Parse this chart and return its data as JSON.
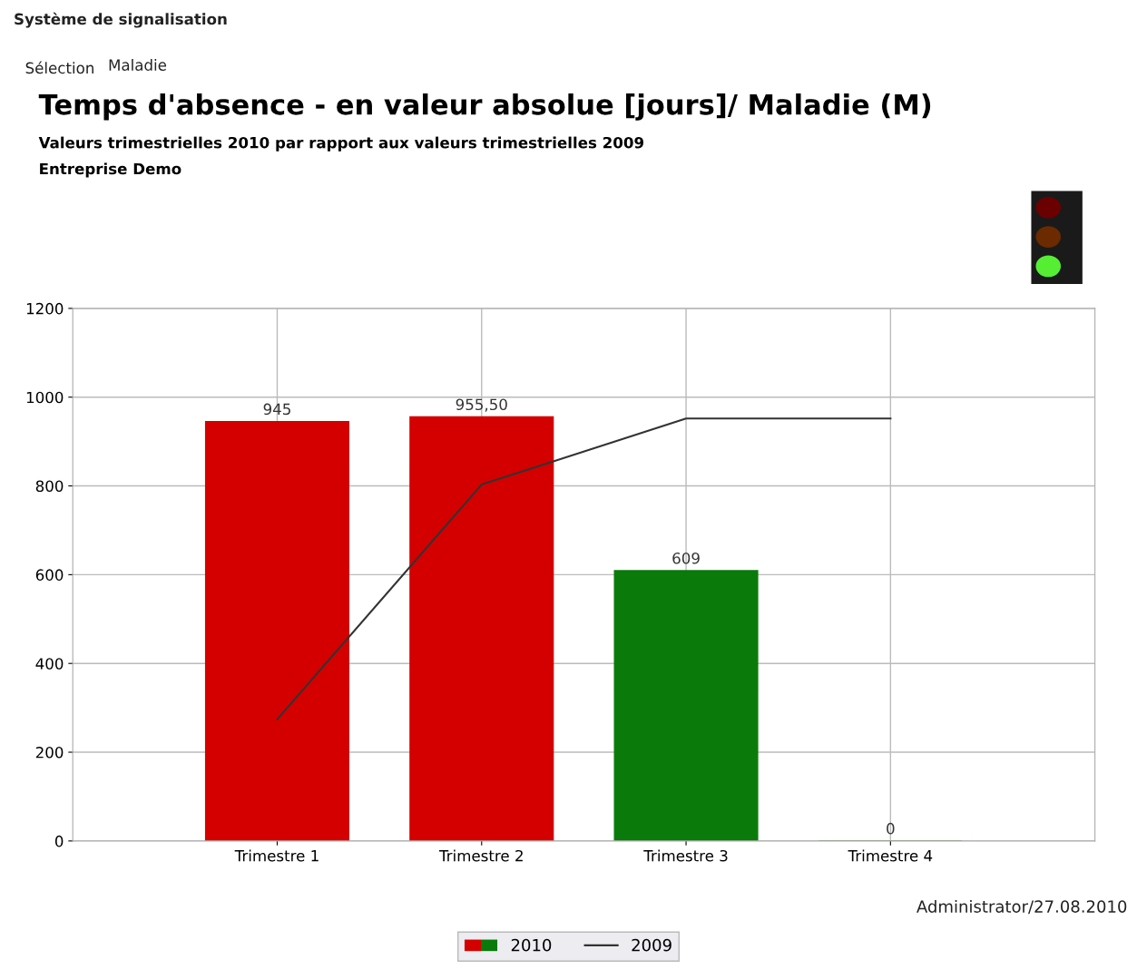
{
  "chart_data": {
    "type": "bar",
    "title": "Temps d'absence - en valeur absolue [jours]/ Maladie (M)",
    "subtitle": "Valeurs trimestrielles 2010 par rapport aux valeurs trimestrielles 2009\nEntreprise Demo",
    "categories": [
      "Trimestre 1",
      "Trimestre 2",
      "Trimestre 3",
      "Trimestre 4"
    ],
    "series": [
      {
        "name": "2010",
        "colors": [
          "#d40000",
          "#d40000",
          "#0a7a0a",
          "#0a7a0a"
        ],
        "values": [
          945,
          955.5,
          609,
          0
        ],
        "value_labels": [
          "945",
          "955,50",
          "609",
          "0"
        ]
      },
      {
        "name": "2009",
        "type": "line",
        "color": "#333333",
        "values": [
          274,
          803,
          952,
          952
        ]
      }
    ],
    "ylim": [
      0,
      1200
    ],
    "yticks": [
      0,
      200,
      400,
      600,
      800,
      1000,
      1200
    ],
    "grid": true,
    "legend": "bottom",
    "annotations": [
      "Système de signalisation",
      "Sélection",
      "Maladie",
      "Administrator/27.08.2010"
    ]
  }
}
